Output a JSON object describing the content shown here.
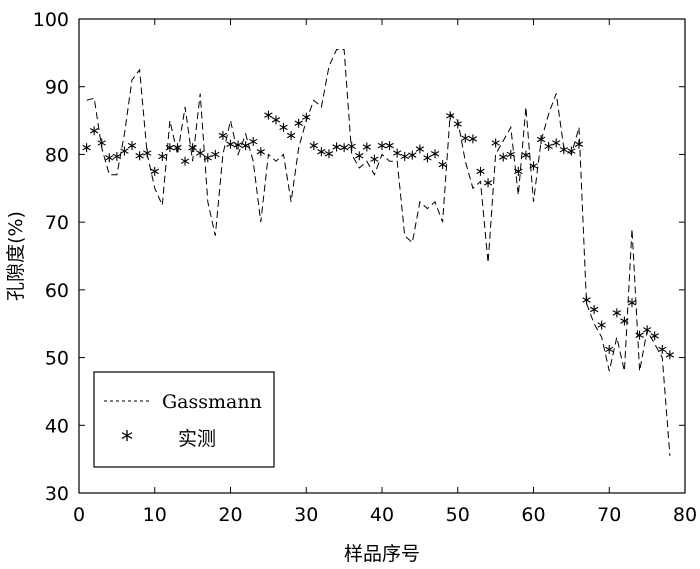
{
  "chart_data": {
    "type": "line",
    "title": "",
    "xlabel": "样品序号",
    "ylabel": "孔隙度(%)",
    "xlim": [
      0,
      80
    ],
    "ylim": [
      30,
      100
    ],
    "xticks": [
      0,
      10,
      20,
      30,
      40,
      50,
      60,
      70,
      80
    ],
    "yticks": [
      30,
      40,
      50,
      60,
      70,
      80,
      90,
      100
    ],
    "grid": false,
    "legend_position": "bottom-left",
    "series": [
      {
        "name": "Gassmann",
        "style": "dashed-line",
        "color": "#000000",
        "x": [
          1,
          2,
          3,
          4,
          5,
          6,
          7,
          8,
          9,
          10,
          11,
          12,
          13,
          14,
          15,
          16,
          17,
          18,
          19,
          20,
          21,
          22,
          23,
          24,
          25,
          26,
          27,
          28,
          29,
          30,
          31,
          32,
          33,
          34,
          35,
          36,
          37,
          38,
          39,
          40,
          41,
          42,
          43,
          44,
          45,
          46,
          47,
          48,
          49,
          50,
          51,
          52,
          53,
          54,
          55,
          56,
          57,
          58,
          59,
          60,
          61,
          62,
          63,
          64,
          65,
          66,
          67,
          68,
          69,
          70,
          71,
          72,
          73,
          74,
          75,
          76,
          77,
          78
        ],
        "y": [
          88,
          88.3,
          81,
          77,
          77,
          83,
          91,
          92.5,
          80,
          75,
          72.5,
          85,
          80,
          87,
          79,
          89,
          73,
          68,
          80,
          85,
          80,
          83,
          79,
          70,
          80,
          79,
          80,
          73,
          81,
          85,
          88,
          87,
          93,
          95.5,
          95.5,
          80,
          78,
          79,
          77,
          80,
          79,
          79,
          68,
          67,
          73,
          72,
          73,
          70,
          86,
          85,
          79,
          75,
          76,
          64,
          80,
          82,
          84,
          74,
          87,
          73,
          82,
          86,
          89,
          81,
          80,
          84,
          58,
          55,
          53,
          48,
          53,
          48,
          69,
          48,
          54,
          52,
          50,
          35.5
        ]
      },
      {
        "name": "实测",
        "style": "asterisk",
        "color": "#000000",
        "x": [
          1,
          2,
          3,
          4,
          5,
          6,
          7,
          8,
          9,
          10,
          11,
          12,
          13,
          14,
          15,
          16,
          17,
          18,
          19,
          20,
          21,
          22,
          23,
          24,
          25,
          26,
          27,
          28,
          29,
          30,
          31,
          32,
          33,
          34,
          35,
          36,
          37,
          38,
          39,
          40,
          41,
          42,
          43,
          44,
          45,
          46,
          47,
          48,
          49,
          50,
          51,
          52,
          53,
          54,
          55,
          56,
          57,
          58,
          59,
          60,
          61,
          62,
          63,
          64,
          65,
          66,
          67,
          68,
          69,
          70,
          71,
          72,
          73,
          74,
          75,
          76,
          77,
          78
        ],
        "y": [
          81,
          83.5,
          81.7,
          79.5,
          79.7,
          80.5,
          81.3,
          79.8,
          80.2,
          77.5,
          79.7,
          81,
          81,
          79,
          81,
          80.2,
          79.5,
          80,
          82.8,
          81.5,
          81.4,
          81.3,
          81.9,
          80.4,
          85.8,
          85.1,
          84,
          82.8,
          84.6,
          85.5,
          81.3,
          80.4,
          80.1,
          81.1,
          81,
          81.2,
          79.8,
          81.1,
          79.3,
          81.3,
          81.3,
          80.2,
          79.7,
          79.9,
          80.8,
          79.5,
          80.1,
          78.5,
          85.7,
          84.5,
          82.4,
          82.3,
          77.5,
          75.8,
          81.7,
          79.6,
          80,
          77.5,
          79.9,
          78.3,
          82.2,
          81.2,
          81.7,
          80.7,
          80.5,
          81.5,
          58.5,
          57.1,
          54.8,
          51.2,
          56.6,
          55.4,
          58.1,
          53.3,
          54.1,
          53.2,
          51.2,
          50.4
        ]
      }
    ]
  }
}
